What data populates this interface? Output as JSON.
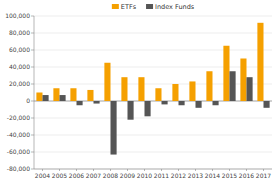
{
  "chart_data": {
    "type": "bar",
    "categories": [
      "2004",
      "2005",
      "2006",
      "2007",
      "2008",
      "2009",
      "2010",
      "2011",
      "2012",
      "2013",
      "2014",
      "2015",
      "2016",
      "2017"
    ],
    "series": [
      {
        "name": "ETFs",
        "color": "#f5a000",
        "values": [
          10000,
          15000,
          15000,
          13000,
          45000,
          28000,
          28000,
          15000,
          20000,
          23000,
          35000,
          65000,
          50000,
          92000
        ]
      },
      {
        "name": "Index Funds",
        "color": "#555555",
        "values": [
          7000,
          7000,
          -5000,
          -3000,
          -63000,
          -22000,
          -18000,
          -4000,
          -5000,
          -8000,
          -5000,
          35000,
          28000,
          -8000
        ]
      }
    ],
    "ylim": [
      -80000,
      100000
    ],
    "yticks": [
      {
        "value": -80000,
        "label": "-80,000"
      },
      {
        "value": -60000,
        "label": "-60,000"
      },
      {
        "value": -40000,
        "label": "-40,000"
      },
      {
        "value": -20000,
        "label": "-20,000"
      },
      0,
      {
        "value": 20000,
        "label": "20,000"
      },
      {
        "value": 40000,
        "label": "40,000"
      },
      {
        "value": 60000,
        "label": "60,000"
      },
      {
        "value": 80000,
        "label": "80,000"
      },
      {
        "value": 100000,
        "label": "100,000"
      }
    ],
    "grid": true,
    "legend": "top"
  }
}
